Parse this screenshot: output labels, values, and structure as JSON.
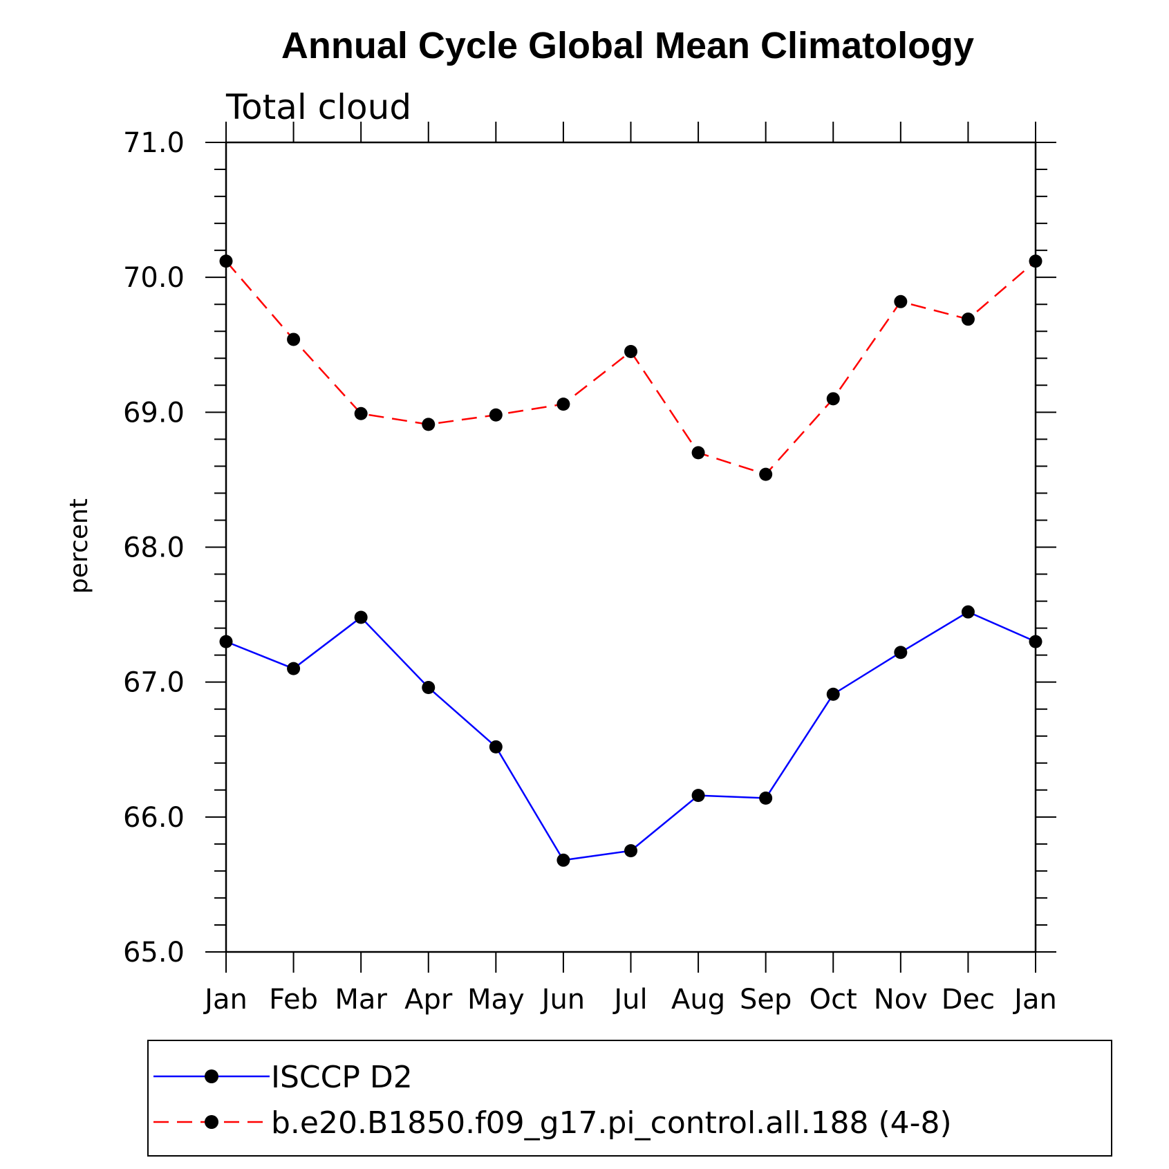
{
  "chart_data": {
    "type": "line",
    "title": "Annual Cycle Global Mean Climatology",
    "subtitle": "Total cloud",
    "xlabel": "",
    "ylabel": "percent",
    "categories": [
      "Jan",
      "Feb",
      "Mar",
      "Apr",
      "May",
      "Jun",
      "Jul",
      "Aug",
      "Sep",
      "Oct",
      "Nov",
      "Dec",
      "Jan"
    ],
    "ylim": [
      65.0,
      71.0
    ],
    "yticks": [
      "65.0",
      "66.0",
      "67.0",
      "68.0",
      "69.0",
      "70.0",
      "71.0"
    ],
    "grid": false,
    "legend_position": "bottom",
    "series": [
      {
        "name": "ISCCP D2",
        "color": "#0000ff",
        "line_style": "solid",
        "marker": "filled-circle",
        "values": [
          67.3,
          67.1,
          67.48,
          66.96,
          66.52,
          65.68,
          65.75,
          66.16,
          66.14,
          66.91,
          67.22,
          67.52,
          67.3
        ]
      },
      {
        "name": "b.e20.B1850.f09_g17.pi_control.all.188 (4-8)",
        "color": "#ff0000",
        "line_style": "dashed",
        "marker": "filled-circle",
        "values": [
          70.12,
          69.54,
          68.99,
          68.91,
          68.98,
          69.06,
          69.45,
          68.7,
          68.54,
          69.1,
          69.82,
          69.69,
          70.12
        ]
      }
    ]
  }
}
